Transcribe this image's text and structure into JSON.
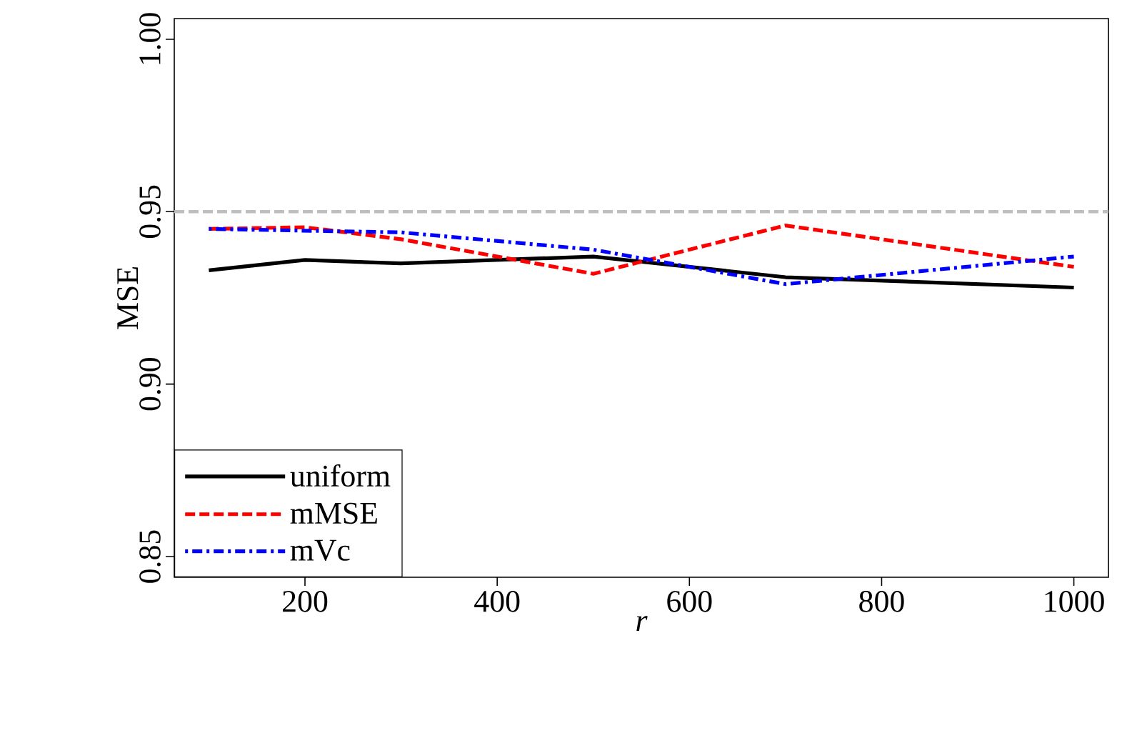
{
  "chart_data": {
    "type": "line",
    "xlabel": "r",
    "ylabel": "MSE",
    "x": [
      100,
      200,
      300,
      500,
      700,
      1000
    ],
    "series": [
      {
        "name": "uniform",
        "color": "#000000",
        "line_style": "solid",
        "values": [
          0.933,
          0.936,
          0.935,
          0.937,
          0.931,
          0.928
        ]
      },
      {
        "name": "mMSE",
        "color": "#ff0000",
        "line_style": "dashed",
        "values": [
          0.945,
          0.9455,
          0.942,
          0.932,
          0.946,
          0.934
        ]
      },
      {
        "name": "mVc",
        "color": "#0000ff",
        "line_style": "dashdot",
        "values": [
          0.945,
          0.9445,
          0.944,
          0.939,
          0.929,
          0.937
        ]
      }
    ],
    "xlim": [
      64,
      1036
    ],
    "ylim": [
      0.844,
      1.006
    ],
    "xticks": [
      200,
      400,
      600,
      800,
      1000
    ],
    "yticks": [
      {
        "value": 0.85,
        "label": "0.85"
      },
      {
        "value": 0.9,
        "label": "0.90"
      },
      {
        "value": 0.95,
        "label": "0.95"
      },
      {
        "value": 1.0,
        "label": "1.00"
      }
    ],
    "ref_lines": [
      {
        "axis": "y",
        "value": 0.95,
        "color": "#bebebe",
        "line_style": "dashed"
      }
    ],
    "grid": false,
    "legend": "bottom left"
  }
}
